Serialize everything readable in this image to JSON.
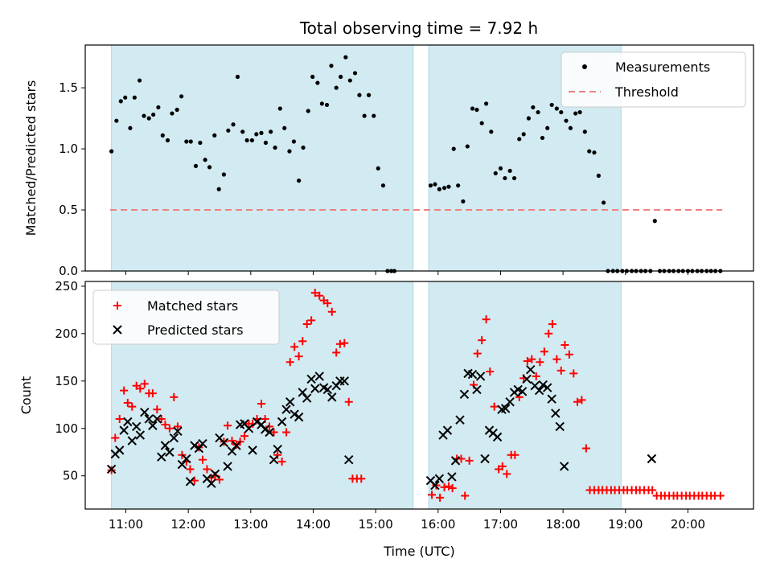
{
  "chart_data": {
    "type": "scatter",
    "title": "Total observing time = 7.92 h",
    "colors": {
      "shade": "#add8e6",
      "measurement": "#000000",
      "threshold": "#f08080",
      "matched": "#ff0000",
      "predicted": "#000000"
    },
    "xlabel": "Time (UTC)",
    "xticks": [
      11,
      12,
      13,
      14,
      15,
      16,
      17,
      18,
      19,
      20
    ],
    "xtick_labels": [
      "11:00",
      "12:00",
      "13:00",
      "14:00",
      "15:00",
      "16:00",
      "17:00",
      "18:00",
      "19:00",
      "20:00"
    ],
    "xlim": [
      10.35,
      21.05
    ],
    "shaded_intervals": [
      [
        10.77,
        15.6
      ],
      [
        15.85,
        18.93
      ]
    ],
    "top": {
      "ylabel": "Matched/Predicted stars",
      "ylim": [
        0,
        1.85
      ],
      "yticks": [
        0.0,
        0.5,
        1.0,
        1.5
      ],
      "ytick_labels": [
        "0.0",
        "0.5",
        "1.0",
        "1.5"
      ],
      "threshold": 0.5,
      "threshold_x": [
        10.75,
        20.55
      ],
      "legend": [
        "Measurements",
        "Threshold"
      ],
      "measurements": [
        [
          10.77,
          0.98
        ],
        [
          10.85,
          1.23
        ],
        [
          10.92,
          1.39
        ],
        [
          10.99,
          1.42
        ],
        [
          11.07,
          1.17
        ],
        [
          11.14,
          1.42
        ],
        [
          11.22,
          1.56
        ],
        [
          11.29,
          1.27
        ],
        [
          11.37,
          1.25
        ],
        [
          11.44,
          1.28
        ],
        [
          11.52,
          1.34
        ],
        [
          11.59,
          1.11
        ],
        [
          11.67,
          1.07
        ],
        [
          11.74,
          1.29
        ],
        [
          11.82,
          1.32
        ],
        [
          11.89,
          1.43
        ],
        [
          11.97,
          1.06
        ],
        [
          12.04,
          1.06
        ],
        [
          12.12,
          0.86
        ],
        [
          12.19,
          1.05
        ],
        [
          12.27,
          0.91
        ],
        [
          12.34,
          0.85
        ],
        [
          12.42,
          1.11
        ],
        [
          12.49,
          0.67
        ],
        [
          12.57,
          0.79
        ],
        [
          12.64,
          1.15
        ],
        [
          12.72,
          1.2
        ],
        [
          12.79,
          1.59
        ],
        [
          12.87,
          1.14
        ],
        [
          12.94,
          1.07
        ],
        [
          13.02,
          1.07
        ],
        [
          13.09,
          1.12
        ],
        [
          13.17,
          1.13
        ],
        [
          13.24,
          1.05
        ],
        [
          13.32,
          1.14
        ],
        [
          13.39,
          1.01
        ],
        [
          13.47,
          1.33
        ],
        [
          13.54,
          1.17
        ],
        [
          13.62,
          0.98
        ],
        [
          13.69,
          1.06
        ],
        [
          13.77,
          0.74
        ],
        [
          13.84,
          1.01
        ],
        [
          13.92,
          1.31
        ],
        [
          13.99,
          1.59
        ],
        [
          14.07,
          1.54
        ],
        [
          14.14,
          1.37
        ],
        [
          14.22,
          1.36
        ],
        [
          14.29,
          1.68
        ],
        [
          14.37,
          1.5
        ],
        [
          14.44,
          1.59
        ],
        [
          14.52,
          1.75
        ],
        [
          14.59,
          1.56
        ],
        [
          14.67,
          1.62
        ],
        [
          14.74,
          1.44
        ],
        [
          14.82,
          1.27
        ],
        [
          14.89,
          1.44
        ],
        [
          14.97,
          1.27
        ],
        [
          15.04,
          0.84
        ],
        [
          15.12,
          0.7
        ],
        [
          15.19,
          0.0
        ],
        [
          15.25,
          0.0
        ],
        [
          15.3,
          0.0
        ],
        [
          15.88,
          0.7
        ],
        [
          15.95,
          0.71
        ],
        [
          16.02,
          0.67
        ],
        [
          16.1,
          0.68
        ],
        [
          16.17,
          0.69
        ],
        [
          16.25,
          1.0
        ],
        [
          16.32,
          0.7
        ],
        [
          16.4,
          0.57
        ],
        [
          16.47,
          1.02
        ],
        [
          16.55,
          1.33
        ],
        [
          16.62,
          1.32
        ],
        [
          16.7,
          1.21
        ],
        [
          16.77,
          1.37
        ],
        [
          16.85,
          1.14
        ],
        [
          16.92,
          0.8
        ],
        [
          17.0,
          0.84
        ],
        [
          17.07,
          0.76
        ],
        [
          17.15,
          0.82
        ],
        [
          17.22,
          0.76
        ],
        [
          17.3,
          1.08
        ],
        [
          17.37,
          1.12
        ],
        [
          17.45,
          1.25
        ],
        [
          17.52,
          1.34
        ],
        [
          17.6,
          1.3
        ],
        [
          17.67,
          1.09
        ],
        [
          17.75,
          1.17
        ],
        [
          17.82,
          1.36
        ],
        [
          17.9,
          1.33
        ],
        [
          17.97,
          1.3
        ],
        [
          18.05,
          1.23
        ],
        [
          18.12,
          1.17
        ],
        [
          18.2,
          1.29
        ],
        [
          18.27,
          1.3
        ],
        [
          18.35,
          1.14
        ],
        [
          18.42,
          0.98
        ],
        [
          18.5,
          0.97
        ],
        [
          18.57,
          0.78
        ],
        [
          18.65,
          0.56
        ],
        [
          18.72,
          0.0
        ],
        [
          18.8,
          0.0
        ],
        [
          18.87,
          0.0
        ],
        [
          18.95,
          0.0
        ],
        [
          19.02,
          0.0
        ],
        [
          19.1,
          0.0
        ],
        [
          19.17,
          0.0
        ],
        [
          19.25,
          0.0
        ],
        [
          19.32,
          0.0
        ],
        [
          19.4,
          0.0
        ],
        [
          19.47,
          0.41
        ],
        [
          19.55,
          0.0
        ],
        [
          19.62,
          0.0
        ],
        [
          19.7,
          0.0
        ],
        [
          19.77,
          0.0
        ],
        [
          19.85,
          0.0
        ],
        [
          19.92,
          0.0
        ],
        [
          20.0,
          0.0
        ],
        [
          20.07,
          0.0
        ],
        [
          20.15,
          0.0
        ],
        [
          20.22,
          0.0
        ],
        [
          20.3,
          0.0
        ],
        [
          20.37,
          0.0
        ],
        [
          20.44,
          0.0
        ],
        [
          20.52,
          0.0
        ]
      ]
    },
    "bottom": {
      "ylabel": "Count",
      "ylim": [
        15,
        255
      ],
      "yticks": [
        50,
        100,
        150,
        200,
        250
      ],
      "ytick_labels": [
        "50",
        "100",
        "150",
        "200",
        "250"
      ],
      "legend": [
        "Matched stars",
        "Predicted stars"
      ],
      "matched": [
        [
          10.77,
          56
        ],
        [
          10.83,
          90
        ],
        [
          10.9,
          110
        ],
        [
          10.97,
          140
        ],
        [
          11.03,
          127
        ],
        [
          11.1,
          123
        ],
        [
          11.17,
          145
        ],
        [
          11.23,
          142
        ],
        [
          11.3,
          147
        ],
        [
          11.37,
          137
        ],
        [
          11.43,
          137
        ],
        [
          11.5,
          120
        ],
        [
          11.57,
          110
        ],
        [
          11.63,
          104
        ],
        [
          11.7,
          100
        ],
        [
          11.77,
          133
        ],
        [
          11.83,
          102
        ],
        [
          11.9,
          72
        ],
        [
          11.97,
          65
        ],
        [
          12.03,
          57
        ],
        [
          12.1,
          45
        ],
        [
          12.17,
          80
        ],
        [
          12.23,
          67
        ],
        [
          12.3,
          57
        ],
        [
          12.37,
          48
        ],
        [
          12.43,
          50
        ],
        [
          12.5,
          46
        ],
        [
          12.57,
          86
        ],
        [
          12.63,
          103
        ],
        [
          12.7,
          87
        ],
        [
          12.77,
          83
        ],
        [
          12.83,
          86
        ],
        [
          12.9,
          92
        ],
        [
          12.97,
          105
        ],
        [
          13.03,
          105
        ],
        [
          13.1,
          110
        ],
        [
          13.17,
          126
        ],
        [
          13.23,
          110
        ],
        [
          13.3,
          102
        ],
        [
          13.37,
          96
        ],
        [
          13.43,
          72
        ],
        [
          13.5,
          65
        ],
        [
          13.57,
          96
        ],
        [
          13.63,
          170
        ],
        [
          13.7,
          186
        ],
        [
          13.77,
          176
        ],
        [
          13.83,
          192
        ],
        [
          13.9,
          210
        ],
        [
          13.97,
          214
        ],
        [
          14.03,
          243
        ],
        [
          14.1,
          240
        ],
        [
          14.17,
          235
        ],
        [
          14.23,
          232
        ],
        [
          14.3,
          223
        ],
        [
          14.37,
          180
        ],
        [
          14.43,
          189
        ],
        [
          14.5,
          190
        ],
        [
          14.57,
          128
        ],
        [
          14.63,
          47
        ],
        [
          14.7,
          47
        ],
        [
          14.77,
          47
        ],
        [
          15.9,
          30
        ],
        [
          15.97,
          40
        ],
        [
          16.03,
          27
        ],
        [
          16.1,
          38
        ],
        [
          16.17,
          39
        ],
        [
          16.23,
          37
        ],
        [
          16.3,
          68
        ],
        [
          16.37,
          68
        ],
        [
          16.43,
          29
        ],
        [
          16.5,
          66
        ],
        [
          16.57,
          146
        ],
        [
          16.63,
          179
        ],
        [
          16.7,
          193
        ],
        [
          16.77,
          215
        ],
        [
          16.83,
          160
        ],
        [
          16.9,
          123
        ],
        [
          16.97,
          57
        ],
        [
          17.03,
          60
        ],
        [
          17.1,
          52
        ],
        [
          17.17,
          72
        ],
        [
          17.23,
          72
        ],
        [
          17.3,
          133
        ],
        [
          17.37,
          153
        ],
        [
          17.43,
          171
        ],
        [
          17.5,
          173
        ],
        [
          17.57,
          155
        ],
        [
          17.63,
          170
        ],
        [
          17.7,
          181
        ],
        [
          17.77,
          200
        ],
        [
          17.83,
          210
        ],
        [
          17.9,
          173
        ],
        [
          17.97,
          161
        ],
        [
          18.03,
          188
        ],
        [
          18.1,
          178
        ],
        [
          18.17,
          158
        ],
        [
          18.23,
          128
        ],
        [
          18.3,
          130
        ],
        [
          18.37,
          79
        ],
        [
          18.43,
          35
        ],
        [
          18.5,
          35
        ],
        [
          18.57,
          35
        ],
        [
          18.63,
          35
        ],
        [
          18.7,
          35
        ],
        [
          18.77,
          35
        ],
        [
          18.83,
          35
        ],
        [
          18.9,
          35
        ],
        [
          18.97,
          35
        ],
        [
          19.03,
          35
        ],
        [
          19.1,
          35
        ],
        [
          19.17,
          35
        ],
        [
          19.23,
          35
        ],
        [
          19.3,
          35
        ],
        [
          19.37,
          35
        ],
        [
          19.43,
          35
        ],
        [
          19.5,
          29
        ],
        [
          19.57,
          29
        ],
        [
          19.63,
          29
        ],
        [
          19.7,
          29
        ],
        [
          19.77,
          29
        ],
        [
          19.83,
          29
        ],
        [
          19.9,
          29
        ],
        [
          19.97,
          29
        ],
        [
          20.03,
          29
        ],
        [
          20.1,
          29
        ],
        [
          20.17,
          29
        ],
        [
          20.23,
          29
        ],
        [
          20.3,
          29
        ],
        [
          20.37,
          29
        ],
        [
          20.43,
          29
        ],
        [
          20.52,
          29
        ]
      ],
      "predicted": [
        [
          10.77,
          57
        ],
        [
          10.83,
          73
        ],
        [
          10.9,
          77
        ],
        [
          10.97,
          98
        ],
        [
          11.03,
          107
        ],
        [
          11.1,
          87
        ],
        [
          11.17,
          102
        ],
        [
          11.23,
          93
        ],
        [
          11.3,
          117
        ],
        [
          11.37,
          110
        ],
        [
          11.43,
          103
        ],
        [
          11.5,
          110
        ],
        [
          11.57,
          70
        ],
        [
          11.63,
          82
        ],
        [
          11.7,
          75
        ],
        [
          11.77,
          90
        ],
        [
          11.83,
          97
        ],
        [
          11.9,
          62
        ],
        [
          11.97,
          68
        ],
        [
          12.03,
          44
        ],
        [
          12.1,
          82
        ],
        [
          12.17,
          79
        ],
        [
          12.23,
          84
        ],
        [
          12.3,
          47
        ],
        [
          12.37,
          42
        ],
        [
          12.43,
          52
        ],
        [
          12.5,
          90
        ],
        [
          12.57,
          85
        ],
        [
          12.63,
          60
        ],
        [
          12.7,
          76
        ],
        [
          12.77,
          82
        ],
        [
          12.83,
          104
        ],
        [
          12.9,
          105
        ],
        [
          12.97,
          100
        ],
        [
          13.03,
          77
        ],
        [
          13.1,
          107
        ],
        [
          13.17,
          104
        ],
        [
          13.23,
          99
        ],
        [
          13.3,
          96
        ],
        [
          13.37,
          67
        ],
        [
          13.43,
          78
        ],
        [
          13.5,
          107
        ],
        [
          13.57,
          120
        ],
        [
          13.63,
          128
        ],
        [
          13.7,
          115
        ],
        [
          13.77,
          112
        ],
        [
          13.83,
          138
        ],
        [
          13.9,
          132
        ],
        [
          13.97,
          152
        ],
        [
          14.03,
          142
        ],
        [
          14.1,
          155
        ],
        [
          14.17,
          143
        ],
        [
          14.23,
          141
        ],
        [
          14.3,
          133
        ],
        [
          14.37,
          145
        ],
        [
          14.43,
          150
        ],
        [
          14.5,
          150
        ],
        [
          14.57,
          67
        ],
        [
          15.88,
          45
        ],
        [
          15.95,
          40
        ],
        [
          16.02,
          47
        ],
        [
          16.08,
          93
        ],
        [
          16.15,
          98
        ],
        [
          16.22,
          49
        ],
        [
          16.28,
          66
        ],
        [
          16.35,
          109
        ],
        [
          16.42,
          136
        ],
        [
          16.48,
          158
        ],
        [
          16.55,
          157
        ],
        [
          16.62,
          141
        ],
        [
          16.68,
          155
        ],
        [
          16.75,
          68
        ],
        [
          16.82,
          98
        ],
        [
          16.88,
          95
        ],
        [
          16.95,
          91
        ],
        [
          17.02,
          120
        ],
        [
          17.08,
          121
        ],
        [
          17.15,
          128
        ],
        [
          17.22,
          138
        ],
        [
          17.28,
          141
        ],
        [
          17.35,
          139
        ],
        [
          17.42,
          152
        ],
        [
          17.48,
          162
        ],
        [
          17.55,
          145
        ],
        [
          17.62,
          140
        ],
        [
          17.68,
          146
        ],
        [
          17.75,
          143
        ],
        [
          17.82,
          131
        ],
        [
          17.88,
          116
        ],
        [
          17.95,
          102
        ],
        [
          18.02,
          60
        ],
        [
          19.42,
          68
        ]
      ]
    }
  }
}
